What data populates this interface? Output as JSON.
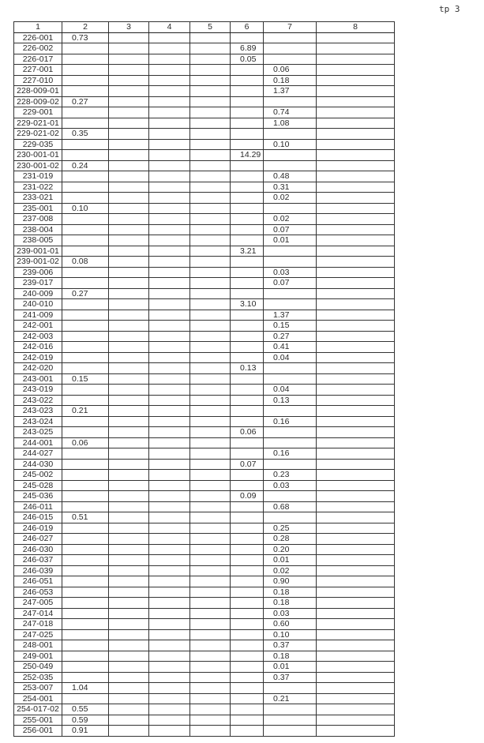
{
  "page_label": "tp 3",
  "columns": [
    "1",
    "2",
    "3",
    "4",
    "5",
    "6",
    "7",
    "8"
  ],
  "rows": [
    [
      "226-001",
      "0.73",
      "",
      "",
      "",
      "",
      "",
      ""
    ],
    [
      "226-002",
      "",
      "",
      "",
      "",
      "6.89",
      "",
      ""
    ],
    [
      "226-017",
      "",
      "",
      "",
      "",
      "0.05",
      "",
      ""
    ],
    [
      "227-001",
      "",
      "",
      "",
      "",
      "",
      "0.06",
      ""
    ],
    [
      "227-010",
      "",
      "",
      "",
      "",
      "",
      "0.18",
      ""
    ],
    [
      "228-009-01",
      "",
      "",
      "",
      "",
      "",
      "1.37",
      ""
    ],
    [
      "228-009-02",
      "0.27",
      "",
      "",
      "",
      "",
      "",
      ""
    ],
    [
      "229-001",
      "",
      "",
      "",
      "",
      "",
      "0.74",
      ""
    ],
    [
      "229-021-01",
      "",
      "",
      "",
      "",
      "",
      "1.08",
      ""
    ],
    [
      "229-021-02",
      "0.35",
      "",
      "",
      "",
      "",
      "",
      ""
    ],
    [
      "229-035",
      "",
      "",
      "",
      "",
      "",
      "0.10",
      ""
    ],
    [
      "230-001-01",
      "",
      "",
      "",
      "",
      "14.29",
      "",
      ""
    ],
    [
      "230-001-02",
      "0.24",
      "",
      "",
      "",
      "",
      "",
      ""
    ],
    [
      "231-019",
      "",
      "",
      "",
      "",
      "",
      "0.48",
      ""
    ],
    [
      "231-022",
      "",
      "",
      "",
      "",
      "",
      "0.31",
      ""
    ],
    [
      "233-021",
      "",
      "",
      "",
      "",
      "",
      "0.02",
      ""
    ],
    [
      "235-001",
      "0.10",
      "",
      "",
      "",
      "",
      "",
      ""
    ],
    [
      "237-008",
      "",
      "",
      "",
      "",
      "",
      "0.02",
      ""
    ],
    [
      "238-004",
      "",
      "",
      "",
      "",
      "",
      "0.07",
      ""
    ],
    [
      "238-005",
      "",
      "",
      "",
      "",
      "",
      "0.01",
      ""
    ],
    [
      "239-001-01",
      "",
      "",
      "",
      "",
      "3.21",
      "",
      ""
    ],
    [
      "239-001-02",
      "0.08",
      "",
      "",
      "",
      "",
      "",
      ""
    ],
    [
      "239-006",
      "",
      "",
      "",
      "",
      "",
      "0.03",
      ""
    ],
    [
      "239-017",
      "",
      "",
      "",
      "",
      "",
      "0.07",
      ""
    ],
    [
      "240-009",
      "0.27",
      "",
      "",
      "",
      "",
      "",
      ""
    ],
    [
      "240-010",
      "",
      "",
      "",
      "",
      "3.10",
      "",
      ""
    ],
    [
      "241-009",
      "",
      "",
      "",
      "",
      "",
      "1.37",
      ""
    ],
    [
      "242-001",
      "",
      "",
      "",
      "",
      "",
      "0.15",
      ""
    ],
    [
      "242-003",
      "",
      "",
      "",
      "",
      "",
      "0.27",
      ""
    ],
    [
      "242-016",
      "",
      "",
      "",
      "",
      "",
      "0.41",
      ""
    ],
    [
      "242-019",
      "",
      "",
      "",
      "",
      "",
      "0.04",
      ""
    ],
    [
      "242-020",
      "",
      "",
      "",
      "",
      "0.13",
      "",
      ""
    ],
    [
      "243-001",
      "0.15",
      "",
      "",
      "",
      "",
      "",
      ""
    ],
    [
      "243-019",
      "",
      "",
      "",
      "",
      "",
      "0.04",
      ""
    ],
    [
      "243-022",
      "",
      "",
      "",
      "",
      "",
      "0.13",
      ""
    ],
    [
      "243-023",
      "0.21",
      "",
      "",
      "",
      "",
      "",
      ""
    ],
    [
      "243-024",
      "",
      "",
      "",
      "",
      "",
      "0.16",
      ""
    ],
    [
      "243-025",
      "",
      "",
      "",
      "",
      "0.06",
      "",
      ""
    ],
    [
      "244-001",
      "0.06",
      "",
      "",
      "",
      "",
      "",
      ""
    ],
    [
      "244-027",
      "",
      "",
      "",
      "",
      "",
      "0.16",
      ""
    ],
    [
      "244-030",
      "",
      "",
      "",
      "",
      "0.07",
      "",
      ""
    ],
    [
      "245-002",
      "",
      "",
      "",
      "",
      "",
      "0.23",
      ""
    ],
    [
      "245-028",
      "",
      "",
      "",
      "",
      "",
      "0.03",
      ""
    ],
    [
      "245-036",
      "",
      "",
      "",
      "",
      "0.09",
      "",
      ""
    ],
    [
      "246-011",
      "",
      "",
      "",
      "",
      "",
      "0.68",
      ""
    ],
    [
      "246-015",
      "0.51",
      "",
      "",
      "",
      "",
      "",
      ""
    ],
    [
      "246-019",
      "",
      "",
      "",
      "",
      "",
      "0.25",
      ""
    ],
    [
      "246-027",
      "",
      "",
      "",
      "",
      "",
      "0.28",
      ""
    ],
    [
      "246-030",
      "",
      "",
      "",
      "",
      "",
      "0.20",
      ""
    ],
    [
      "246-037",
      "",
      "",
      "",
      "",
      "",
      "0.01",
      ""
    ],
    [
      "246-039",
      "",
      "",
      "",
      "",
      "",
      "0.02",
      ""
    ],
    [
      "246-051",
      "",
      "",
      "",
      "",
      "",
      "0.90",
      ""
    ],
    [
      "246-053",
      "",
      "",
      "",
      "",
      "",
      "0.18",
      ""
    ],
    [
      "247-005",
      "",
      "",
      "",
      "",
      "",
      "0.18",
      ""
    ],
    [
      "247-014",
      "",
      "",
      "",
      "",
      "",
      "0.03",
      ""
    ],
    [
      "247-018",
      "",
      "",
      "",
      "",
      "",
      "0.60",
      ""
    ],
    [
      "247-025",
      "",
      "",
      "",
      "",
      "",
      "0.10",
      ""
    ],
    [
      "248-001",
      "",
      "",
      "",
      "",
      "",
      "0.37",
      ""
    ],
    [
      "249-001",
      "",
      "",
      "",
      "",
      "",
      "0.18",
      ""
    ],
    [
      "250-049",
      "",
      "",
      "",
      "",
      "",
      "0.01",
      ""
    ],
    [
      "252-035",
      "",
      "",
      "",
      "",
      "",
      "0.37",
      ""
    ],
    [
      "253-007",
      "1.04",
      "",
      "",
      "",
      "",
      "",
      ""
    ],
    [
      "254-001",
      "",
      "",
      "",
      "",
      "",
      "0.21",
      ""
    ],
    [
      "254-017-02",
      "0.55",
      "",
      "",
      "",
      "",
      "",
      ""
    ],
    [
      "255-001",
      "0.59",
      "",
      "",
      "",
      "",
      "",
      ""
    ],
    [
      "256-001",
      "0.91",
      "",
      "",
      "",
      "",
      "",
      ""
    ]
  ]
}
